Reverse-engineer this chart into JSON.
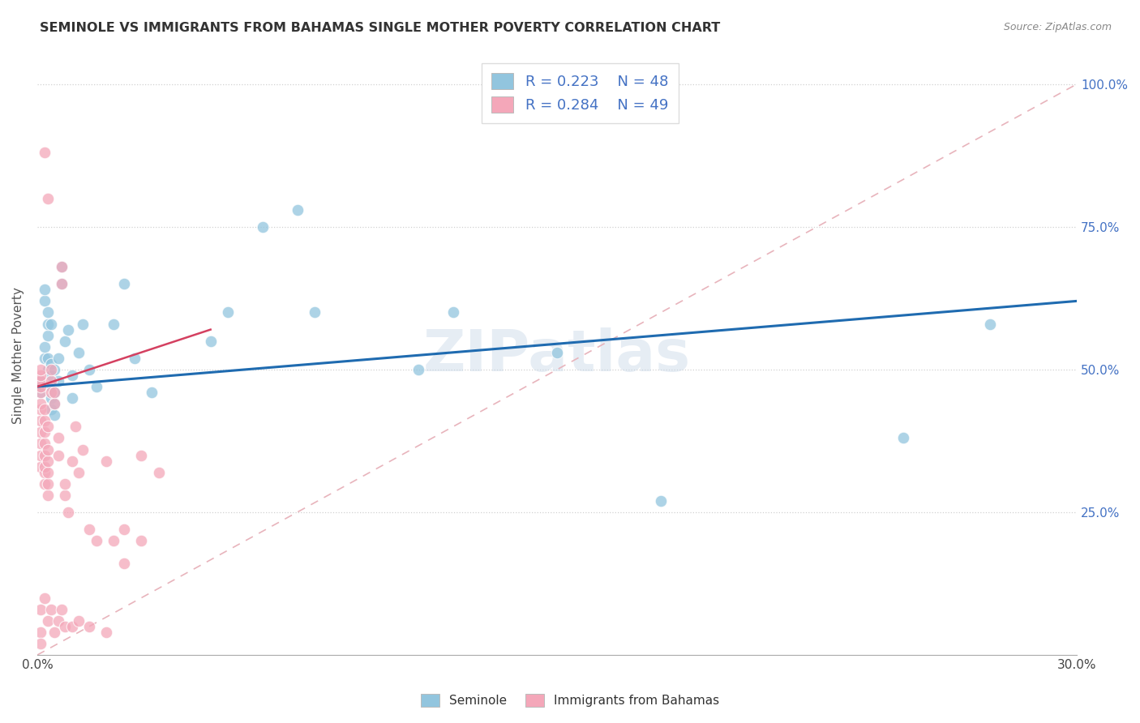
{
  "title": "SEMINOLE VS IMMIGRANTS FROM BAHAMAS SINGLE MOTHER POVERTY CORRELATION CHART",
  "source": "Source: ZipAtlas.com",
  "ylabel": "Single Mother Poverty",
  "legend_label1": "Seminole",
  "legend_label2": "Immigrants from Bahamas",
  "r1": 0.223,
  "n1": 48,
  "r2": 0.284,
  "n2": 49,
  "watermark": "ZIPatlas",
  "blue_color": "#92c5de",
  "pink_color": "#f4a7b9",
  "blue_line_color": "#1f6bb0",
  "pink_line_color": "#d44060",
  "diagonal_color": "#e8b4bc",
  "seminole_x": [
    0.001,
    0.001,
    0.002,
    0.002,
    0.002,
    0.002,
    0.003,
    0.003,
    0.003,
    0.003,
    0.003,
    0.004,
    0.004,
    0.004,
    0.004,
    0.004,
    0.004,
    0.005,
    0.005,
    0.005,
    0.005,
    0.006,
    0.006,
    0.007,
    0.007,
    0.008,
    0.009,
    0.01,
    0.01,
    0.012,
    0.013,
    0.015,
    0.017,
    0.022,
    0.025,
    0.028,
    0.033,
    0.05,
    0.055,
    0.065,
    0.075,
    0.08,
    0.11,
    0.12,
    0.15,
    0.18,
    0.25,
    0.275
  ],
  "seminole_y": [
    0.46,
    0.48,
    0.52,
    0.54,
    0.62,
    0.64,
    0.5,
    0.52,
    0.56,
    0.58,
    0.6,
    0.43,
    0.45,
    0.47,
    0.49,
    0.51,
    0.58,
    0.42,
    0.44,
    0.46,
    0.5,
    0.48,
    0.52,
    0.65,
    0.68,
    0.55,
    0.57,
    0.45,
    0.49,
    0.53,
    0.58,
    0.5,
    0.47,
    0.58,
    0.65,
    0.52,
    0.46,
    0.55,
    0.6,
    0.75,
    0.78,
    0.6,
    0.5,
    0.6,
    0.53,
    0.27,
    0.38,
    0.58
  ],
  "bahamas_x": [
    0.001,
    0.001,
    0.001,
    0.001,
    0.001,
    0.001,
    0.001,
    0.001,
    0.001,
    0.001,
    0.001,
    0.001,
    0.002,
    0.002,
    0.002,
    0.002,
    0.002,
    0.002,
    0.002,
    0.002,
    0.003,
    0.003,
    0.003,
    0.003,
    0.003,
    0.003,
    0.004,
    0.004,
    0.004,
    0.005,
    0.005,
    0.006,
    0.006,
    0.007,
    0.007,
    0.008,
    0.008,
    0.009,
    0.01,
    0.011,
    0.012,
    0.013,
    0.015,
    0.017,
    0.02,
    0.022,
    0.025,
    0.03,
    0.035
  ],
  "bahamas_y": [
    0.33,
    0.35,
    0.37,
    0.39,
    0.41,
    0.43,
    0.44,
    0.46,
    0.47,
    0.48,
    0.49,
    0.5,
    0.3,
    0.32,
    0.33,
    0.35,
    0.37,
    0.39,
    0.41,
    0.43,
    0.28,
    0.3,
    0.32,
    0.34,
    0.36,
    0.4,
    0.46,
    0.48,
    0.5,
    0.44,
    0.46,
    0.35,
    0.38,
    0.65,
    0.68,
    0.28,
    0.3,
    0.25,
    0.34,
    0.4,
    0.32,
    0.36,
    0.22,
    0.2,
    0.34,
    0.2,
    0.16,
    0.35,
    0.32
  ],
  "bahamas_extra_x": [
    0.001,
    0.001,
    0.001,
    0.002,
    0.003,
    0.004,
    0.005,
    0.006,
    0.007,
    0.008,
    0.01,
    0.012,
    0.015,
    0.02,
    0.025,
    0.03,
    0.002,
    0.003
  ],
  "bahamas_extra_y": [
    0.08,
    0.04,
    0.02,
    0.1,
    0.06,
    0.08,
    0.04,
    0.06,
    0.08,
    0.05,
    0.05,
    0.06,
    0.05,
    0.04,
    0.22,
    0.2,
    0.88,
    0.8
  ],
  "xlim": [
    0.0,
    0.3
  ],
  "ylim": [
    0.0,
    1.05
  ],
  "ytick_vals": [
    0.25,
    0.5,
    0.75,
    1.0
  ],
  "ytick_labels": [
    "25.0%",
    "50.0%",
    "75.0%",
    "100.0%"
  ],
  "xtick_vals": [
    0.0,
    0.05,
    0.1,
    0.15,
    0.2,
    0.25,
    0.3
  ],
  "xtick_labels": [
    "0.0%",
    "",
    "",
    "",
    "",
    "",
    "30.0%"
  ]
}
